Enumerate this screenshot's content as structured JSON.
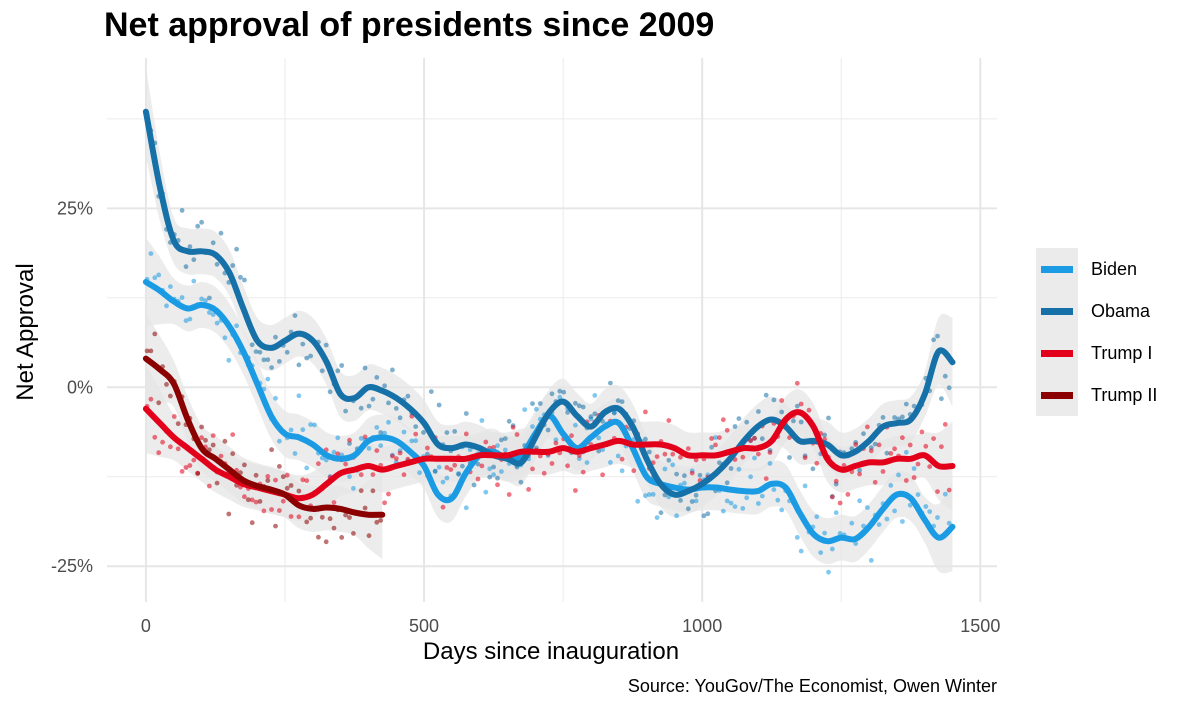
{
  "chart_data": {
    "type": "line",
    "title": "Net approval of presidents since 2009",
    "xlabel": "Days since inauguration",
    "ylabel": "Net Approval",
    "caption": "Source: YouGov/The Economist, Owen Winter",
    "xlim": [
      -70,
      1530
    ],
    "ylim": [
      -30,
      46
    ],
    "x_ticks": [
      0,
      500,
      1000,
      1500
    ],
    "x_tick_labels": [
      "0",
      "500",
      "1000",
      "1500"
    ],
    "y_ticks": [
      -25,
      0,
      25
    ],
    "y_tick_labels": [
      "-25%",
      "0%",
      "25%"
    ],
    "grid": true,
    "legend_position": "right",
    "series": [
      {
        "name": "Biden",
        "color": "#1a9be3",
        "smoothed": {
          "x": [
            0,
            25,
            50,
            75,
            100,
            125,
            150,
            175,
            200,
            225,
            250,
            275,
            300,
            325,
            350,
            375,
            400,
            425,
            450,
            475,
            500,
            525,
            550,
            575,
            600,
            625,
            650,
            675,
            700,
            725,
            750,
            775,
            800,
            825,
            850,
            875,
            900,
            925,
            950,
            975,
            1000,
            1025,
            1050,
            1075,
            1100,
            1125,
            1150,
            1175,
            1200,
            1225,
            1250,
            1275,
            1300,
            1325,
            1350,
            1375,
            1400,
            1425,
            1450
          ],
          "y": [
            14.7,
            13.5,
            12.0,
            11.0,
            11.5,
            10.8,
            8.5,
            5.0,
            0.5,
            -4.0,
            -6.5,
            -7.0,
            -8.0,
            -9.5,
            -10.0,
            -9.5,
            -7.5,
            -7.0,
            -7.5,
            -9.0,
            -11.0,
            -15.0,
            -15.5,
            -12.0,
            -9.5,
            -9.0,
            -10.0,
            -9.5,
            -6.5,
            -4.0,
            -6.5,
            -8.5,
            -7.0,
            -5.5,
            -5.0,
            -8.5,
            -12.5,
            -13.5,
            -14.0,
            -14.3,
            -14.0,
            -14.0,
            -14.3,
            -14.5,
            -14.5,
            -13.5,
            -14.0,
            -17.5,
            -20.5,
            -21.5,
            -21.0,
            -21.2,
            -19.5,
            -17.0,
            -15.0,
            -15.5,
            -18.5,
            -21.0,
            -19.5
          ]
        }
      },
      {
        "name": "Obama",
        "color": "#1571a8",
        "smoothed": {
          "x": [
            0,
            25,
            50,
            75,
            100,
            125,
            150,
            175,
            200,
            225,
            250,
            275,
            300,
            325,
            350,
            375,
            400,
            425,
            450,
            475,
            500,
            525,
            550,
            575,
            600,
            625,
            650,
            675,
            700,
            725,
            750,
            775,
            800,
            825,
            850,
            875,
            900,
            925,
            950,
            975,
            1000,
            1025,
            1050,
            1075,
            1100,
            1125,
            1150,
            1175,
            1200,
            1225,
            1250,
            1275,
            1300,
            1325,
            1350,
            1375,
            1400,
            1425,
            1450
          ],
          "y": [
            38.5,
            28.0,
            20.5,
            19.0,
            19.0,
            18.5,
            16.0,
            11.0,
            6.5,
            5.5,
            6.5,
            7.5,
            6.5,
            3.5,
            -1.0,
            -1.5,
            0.0,
            -0.5,
            -1.5,
            -3.0,
            -5.0,
            -8.0,
            -8.5,
            -8.0,
            -8.5,
            -9.5,
            -10.0,
            -10.5,
            -7.0,
            -3.5,
            -2.0,
            -4.0,
            -5.5,
            -3.5,
            -3.0,
            -5.5,
            -10.0,
            -13.5,
            -15.0,
            -14.5,
            -13.5,
            -12.0,
            -10.0,
            -7.5,
            -5.5,
            -4.5,
            -5.5,
            -7.5,
            -7.5,
            -8.0,
            -9.5,
            -9.0,
            -7.5,
            -5.5,
            -5.0,
            -4.5,
            -1.0,
            5.0,
            3.5
          ]
        }
      },
      {
        "name": "Trump I",
        "color": "#e3001b",
        "smoothed": {
          "x": [
            0,
            25,
            50,
            75,
            100,
            125,
            150,
            175,
            200,
            225,
            250,
            275,
            300,
            325,
            350,
            375,
            400,
            425,
            450,
            475,
            500,
            525,
            550,
            575,
            600,
            625,
            650,
            675,
            700,
            725,
            750,
            775,
            800,
            825,
            850,
            875,
            900,
            925,
            950,
            975,
            1000,
            1025,
            1050,
            1075,
            1100,
            1125,
            1150,
            1175,
            1200,
            1225,
            1250,
            1275,
            1300,
            1325,
            1350,
            1375,
            1400,
            1425,
            1450
          ],
          "y": [
            -3.0,
            -5.0,
            -7.0,
            -8.5,
            -10.0,
            -11.5,
            -12.5,
            -13.5,
            -14.0,
            -14.5,
            -15.0,
            -15.5,
            -15.0,
            -13.5,
            -12.0,
            -11.5,
            -11.0,
            -11.5,
            -11.0,
            -10.5,
            -10.0,
            -10.0,
            -10.0,
            -10.0,
            -9.5,
            -9.5,
            -9.5,
            -9.0,
            -9.0,
            -9.0,
            -8.5,
            -9.0,
            -8.5,
            -8.0,
            -7.5,
            -8.0,
            -8.0,
            -8.0,
            -8.5,
            -9.5,
            -9.5,
            -9.5,
            -9.0,
            -8.5,
            -8.5,
            -7.5,
            -4.5,
            -3.5,
            -5.5,
            -10.0,
            -11.5,
            -11.0,
            -10.5,
            -10.5,
            -10.0,
            -10.0,
            -9.5,
            -11.0,
            -11.0
          ]
        }
      },
      {
        "name": "Trump II",
        "color": "#8b0000",
        "smoothed": {
          "x": [
            0,
            25,
            50,
            75,
            100,
            125,
            150,
            175,
            200,
            225,
            250,
            275,
            300,
            325,
            350,
            375,
            400,
            425
          ],
          "y": [
            4.0,
            2.5,
            0.5,
            -4.5,
            -8.5,
            -10.0,
            -11.5,
            -13.0,
            -13.8,
            -14.3,
            -15.0,
            -16.5,
            -17.0,
            -16.8,
            -17.0,
            -17.5,
            -17.8,
            -17.8
          ]
        }
      }
    ]
  }
}
